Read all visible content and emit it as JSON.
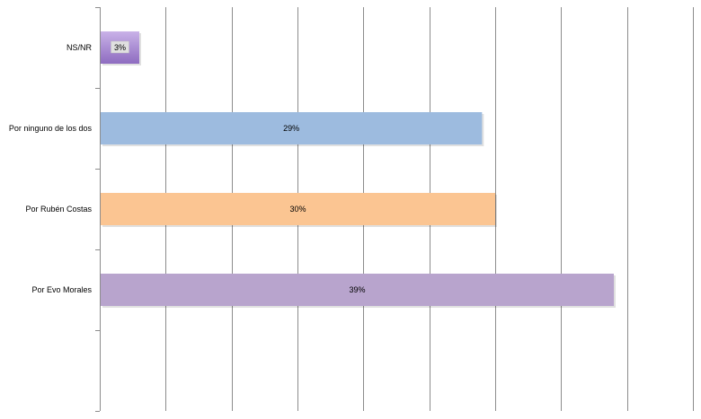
{
  "chart_data": {
    "type": "bar",
    "orientation": "horizontal",
    "categories": [
      "NS/NR",
      "Por ninguno de los dos",
      "Por Rubén Costas",
      "Por Evo Morales"
    ],
    "values": [
      3,
      29,
      30,
      39
    ],
    "value_labels": [
      "3%",
      "29%",
      "30%",
      "39%"
    ],
    "colors": [
      "#b89fd6",
      "#9dbbdf",
      "#fbc592",
      "#b8a4cd"
    ],
    "xlim": [
      0,
      45
    ],
    "grid": true,
    "legend": "none",
    "title": "",
    "xlabel": "",
    "ylabel": ""
  }
}
